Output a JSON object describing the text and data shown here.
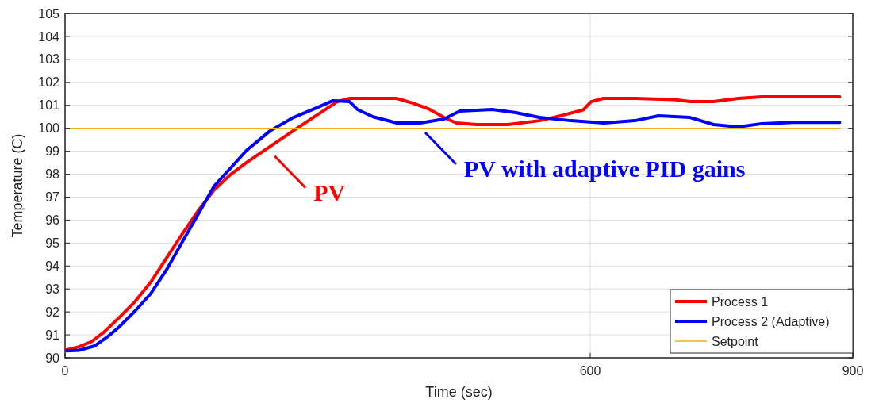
{
  "chart_data": {
    "type": "line",
    "xlabel": "Time (sec)",
    "ylabel": "Temperature (C)",
    "xlim": [
      0,
      900
    ],
    "xticks": [
      0,
      600,
      900
    ],
    "ylim": [
      90,
      105
    ],
    "yticks": [
      90,
      91,
      92,
      93,
      94,
      95,
      96,
      97,
      98,
      99,
      100,
      101,
      102,
      103,
      104,
      105
    ],
    "grid": true,
    "legend": "bottom right",
    "line_style": "solid",
    "marker": "none",
    "series": [
      {
        "name": "Process 1",
        "color": "#ff0000",
        "x": [
          2,
          16,
          30,
          44,
          62,
          80,
          98,
          116,
          134,
          152,
          170,
          189,
          207,
          234,
          261,
          288,
          311,
          325,
          352,
          379,
          397,
          415,
          433,
          447,
          470,
          506,
          542,
          569,
          592,
          601,
          615,
          651,
          696,
          714,
          741,
          769,
          796,
          885
        ],
        "values": [
          90.35,
          90.48,
          90.7,
          91.1,
          91.76,
          92.45,
          93.3,
          94.35,
          95.4,
          96.4,
          97.3,
          97.98,
          98.5,
          99.2,
          99.9,
          100.58,
          101.16,
          101.3,
          101.3,
          101.3,
          101.1,
          100.85,
          100.47,
          100.23,
          100.16,
          100.16,
          100.33,
          100.57,
          100.8,
          101.16,
          101.3,
          101.3,
          101.25,
          101.16,
          101.16,
          101.3,
          101.37,
          101.37
        ]
      },
      {
        "name": "Process 2 (Adaptive)",
        "color": "#0000ff",
        "x": [
          2,
          16,
          34,
          48,
          62,
          80,
          98,
          116,
          134,
          152,
          170,
          189,
          207,
          234,
          261,
          288,
          306,
          325,
          334,
          352,
          379,
          406,
          433,
          451,
          488,
          515,
          542,
          578,
          615,
          651,
          678,
          714,
          741,
          769,
          796,
          832,
          885
        ],
        "values": [
          90.3,
          90.33,
          90.52,
          90.9,
          91.35,
          92.04,
          92.8,
          93.84,
          95.05,
          96.25,
          97.46,
          98.26,
          99.02,
          99.88,
          100.47,
          100.9,
          101.2,
          101.16,
          100.82,
          100.5,
          100.23,
          100.23,
          100.4,
          100.75,
          100.82,
          100.68,
          100.47,
          100.33,
          100.23,
          100.33,
          100.54,
          100.47,
          100.16,
          100.06,
          100.2,
          100.26,
          100.26
        ]
      },
      {
        "name": "Setpoint",
        "color": "#edb120",
        "x": [
          0,
          885
        ],
        "values": [
          100,
          100
        ]
      }
    ],
    "annotations": [
      {
        "text": "PV",
        "x": 234,
        "y": 99.2
      },
      {
        "text": "PV with adaptive PID gains",
        "x": 406,
        "y": 100.23
      }
    ]
  }
}
